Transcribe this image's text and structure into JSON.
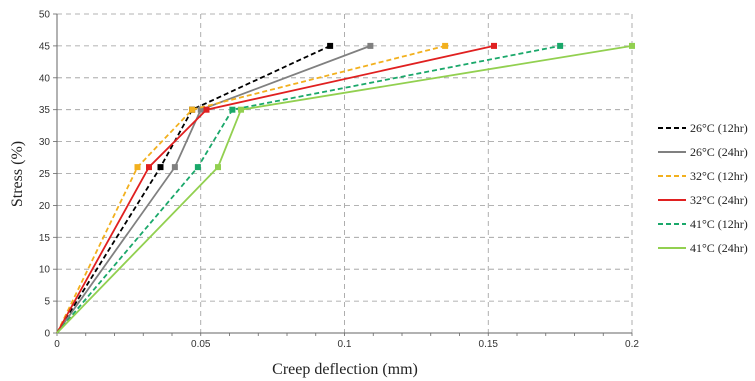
{
  "chart_data": {
    "type": "line",
    "title": "",
    "xlabel": "Creep deflection (mm)",
    "ylabel": "Stress (%)",
    "xlim": [
      0,
      0.2
    ],
    "ylim": [
      0,
      50
    ],
    "x_ticks": [
      "0",
      "0.05",
      "0.1",
      "0.15",
      "0.2"
    ],
    "y_ticks": [
      "0",
      "5",
      "10",
      "15",
      "20",
      "25",
      "30",
      "35",
      "40",
      "45",
      "50"
    ],
    "grid": true,
    "legend_position": "right",
    "series": [
      {
        "name": "26°C (12hr)",
        "color": "#000000",
        "dash": true,
        "points": [
          [
            0,
            0
          ],
          [
            0.036,
            26
          ],
          [
            0.047,
            35
          ],
          [
            0.095,
            45
          ]
        ]
      },
      {
        "name": "26°C (24hr)",
        "color": "#808080",
        "dash": false,
        "points": [
          [
            0,
            0
          ],
          [
            0.041,
            26
          ],
          [
            0.05,
            35
          ],
          [
            0.109,
            45
          ]
        ]
      },
      {
        "name": "32°C (12hr)",
        "color": "#f2b01e",
        "dash": true,
        "points": [
          [
            0,
            0
          ],
          [
            0.028,
            26
          ],
          [
            0.047,
            35
          ],
          [
            0.135,
            45
          ]
        ]
      },
      {
        "name": "32°C (24hr)",
        "color": "#e02020",
        "dash": false,
        "points": [
          [
            0,
            0
          ],
          [
            0.032,
            26
          ],
          [
            0.052,
            35
          ],
          [
            0.152,
            45
          ]
        ]
      },
      {
        "name": "41°C (12hr)",
        "color": "#1aa86a",
        "dash": true,
        "points": [
          [
            0,
            0
          ],
          [
            0.049,
            26
          ],
          [
            0.061,
            35
          ],
          [
            0.175,
            45
          ]
        ]
      },
      {
        "name": "41°C (24hr)",
        "color": "#92d050",
        "dash": false,
        "points": [
          [
            0,
            0
          ],
          [
            0.056,
            26
          ],
          [
            0.064,
            35
          ],
          [
            0.2,
            45
          ]
        ]
      }
    ]
  }
}
